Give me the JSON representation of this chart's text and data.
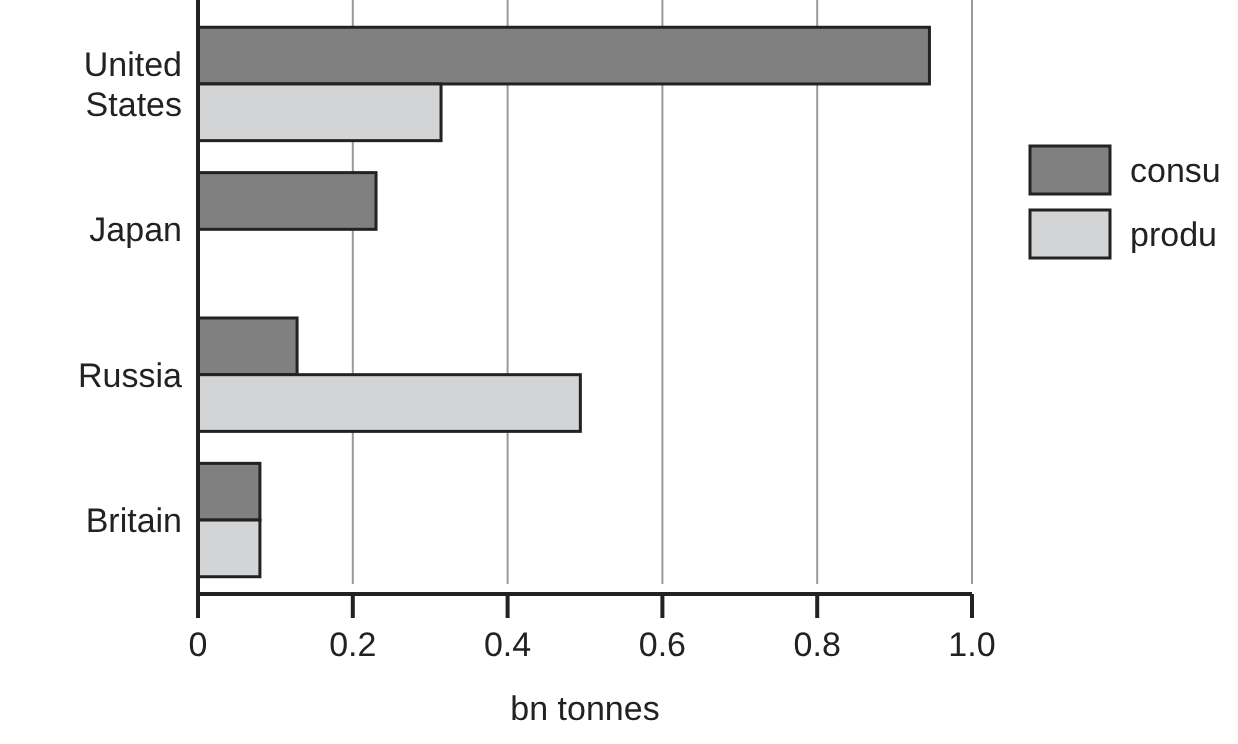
{
  "chart_data": {
    "type": "bar",
    "orientation": "horizontal",
    "xlabel": "bn tonnes",
    "categories": [
      "United\nStates",
      "Japan",
      "Russia",
      "Britain"
    ],
    "series": [
      {
        "name": "consu",
        "color": "#808080",
        "values": [
          0.945,
          0.23,
          0.128,
          0.08
        ]
      },
      {
        "name": "produ",
        "color": "#d3d4d6",
        "values": [
          0.314,
          null,
          0.494,
          0.08
        ]
      }
    ],
    "xlim": [
      0,
      1
    ],
    "xticks": [
      0,
      0.2,
      0.4,
      0.6,
      0.8,
      {
        "value": 1,
        "label": "1.0"
      }
    ],
    "grid": "x",
    "legend": "right"
  }
}
